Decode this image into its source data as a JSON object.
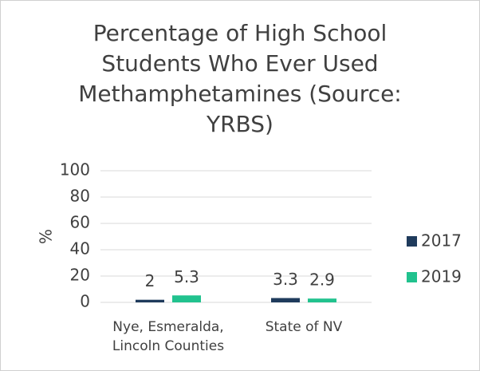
{
  "chart_data": {
    "type": "bar",
    "title": "Percentage of High School Students Who Ever Used Methamphetamines (Source: YRBS)",
    "y_label": "%",
    "categories": [
      "Nye, Esmeralda, Lincoln Counties",
      "State of NV"
    ],
    "series": [
      {
        "name": "2017",
        "color": "#1f3b5c",
        "values": [
          2,
          3.3
        ]
      },
      {
        "name": "2019",
        "color": "#21c28e",
        "values": [
          5.3,
          2.9
        ]
      }
    ],
    "ylim": [
      0,
      100
    ],
    "yticks": [
      0,
      20,
      40,
      60,
      80,
      100
    ],
    "grid": true,
    "legend": "right"
  }
}
